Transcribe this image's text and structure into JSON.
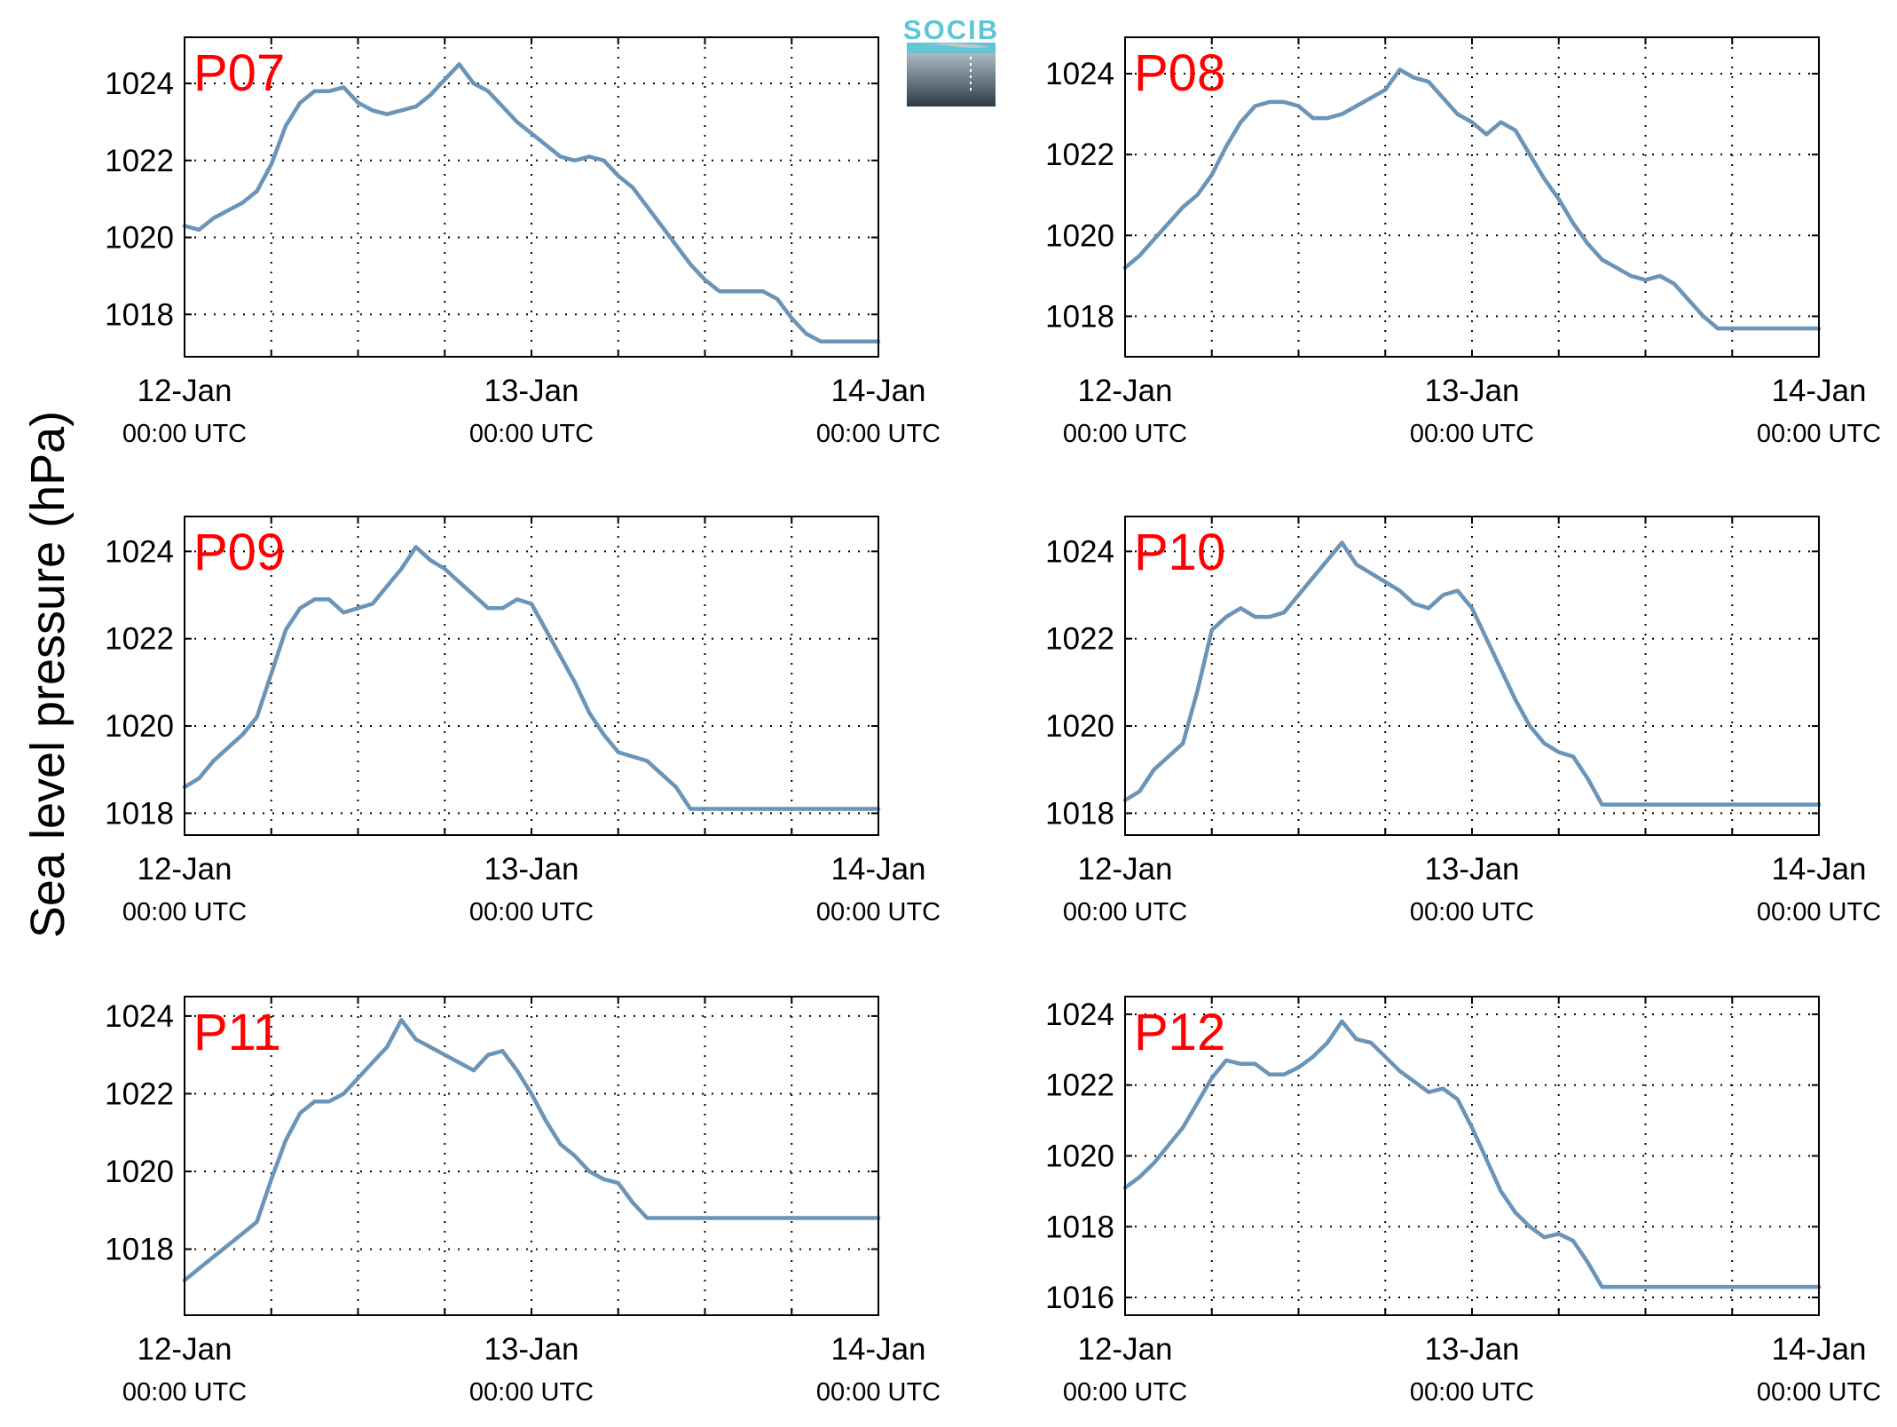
{
  "colors": {
    "line": "#6a94b8",
    "label": "#ff0000",
    "logo_top": "#5ec4d6",
    "logo_dark": "#2c3a44"
  },
  "logo": {
    "text": "SOCIB"
  },
  "ylabel": "Sea level pressure (hPa)",
  "chart_data": [
    {
      "type": "line",
      "label": "P07",
      "ylim": [
        1016.9,
        1025.2
      ],
      "yticks": [
        1018,
        1020,
        1022,
        1024
      ],
      "x_ticks": [
        "12-Jan",
        "13-Jan",
        "14-Jan"
      ],
      "x_tick_sub": "00:00 UTC",
      "xlim_hours": [
        0,
        48
      ],
      "grid": true,
      "x": [
        0,
        1,
        2,
        3,
        4,
        5,
        6,
        7,
        8,
        9,
        10,
        11,
        12,
        13,
        14,
        15,
        16,
        17,
        18,
        19,
        20,
        21,
        22,
        23,
        24,
        25,
        26,
        27,
        28,
        29,
        30,
        31,
        32,
        33,
        34,
        35,
        36,
        37,
        38,
        39,
        40,
        41,
        42,
        43,
        44,
        45,
        46,
        47,
        48
      ],
      "y": [
        1020.3,
        1020.2,
        1020.5,
        1020.7,
        1020.9,
        1021.2,
        1021.9,
        1022.9,
        1023.5,
        1023.8,
        1023.8,
        1023.9,
        1023.5,
        1023.3,
        1023.2,
        1023.3,
        1023.4,
        1023.7,
        1024.1,
        1024.5,
        1024.0,
        1023.8,
        1023.4,
        1023.0,
        1022.7,
        1022.4,
        1022.1,
        1022.0,
        1022.1,
        1022.0,
        1021.6,
        1021.3,
        1020.8,
        1020.3,
        1019.8,
        1019.3,
        1018.9,
        1018.6,
        1018.6,
        1018.6,
        1018.6,
        1018.4,
        1017.9,
        1017.5,
        1017.3,
        1017.3,
        1017.3,
        1017.3,
        1017.3
      ]
    },
    {
      "type": "line",
      "label": "P08",
      "ylim": [
        1017.0,
        1024.9
      ],
      "yticks": [
        1018,
        1020,
        1022,
        1024
      ],
      "x_ticks": [
        "12-Jan",
        "13-Jan",
        "14-Jan"
      ],
      "x_tick_sub": "00:00 UTC",
      "xlim_hours": [
        0,
        48
      ],
      "grid": true,
      "x": [
        0,
        1,
        2,
        3,
        4,
        5,
        6,
        7,
        8,
        9,
        10,
        11,
        12,
        13,
        14,
        15,
        16,
        17,
        18,
        19,
        20,
        21,
        22,
        23,
        24,
        25,
        26,
        27,
        28,
        29,
        30,
        31,
        32,
        33,
        34,
        35,
        36,
        37,
        38,
        39,
        40,
        41,
        42,
        43,
        44,
        45,
        46,
        47,
        48
      ],
      "y": [
        1019.2,
        1019.5,
        1019.9,
        1020.3,
        1020.7,
        1021.0,
        1021.5,
        1022.2,
        1022.8,
        1023.2,
        1023.3,
        1023.3,
        1023.2,
        1022.9,
        1022.9,
        1023.0,
        1023.2,
        1023.4,
        1023.6,
        1024.1,
        1023.9,
        1023.8,
        1023.4,
        1023.0,
        1022.8,
        1022.5,
        1022.8,
        1022.6,
        1022.0,
        1021.4,
        1020.9,
        1020.3,
        1019.8,
        1019.4,
        1019.2,
        1019.0,
        1018.9,
        1019.0,
        1018.8,
        1018.4,
        1018.0,
        1017.7,
        1017.7,
        1017.7,
        1017.7,
        1017.7,
        1017.7,
        1017.7,
        1017.7
      ]
    },
    {
      "type": "line",
      "label": "P09",
      "ylim": [
        1017.5,
        1024.8
      ],
      "yticks": [
        1018,
        1020,
        1022,
        1024
      ],
      "x_ticks": [
        "12-Jan",
        "13-Jan",
        "14-Jan"
      ],
      "x_tick_sub": "00:00 UTC",
      "xlim_hours": [
        0,
        48
      ],
      "grid": true,
      "x": [
        0,
        1,
        2,
        3,
        4,
        5,
        6,
        7,
        8,
        9,
        10,
        11,
        12,
        13,
        14,
        15,
        16,
        17,
        18,
        19,
        20,
        21,
        22,
        23,
        24,
        25,
        26,
        27,
        28,
        29,
        30,
        31,
        32,
        33,
        34,
        35,
        36,
        37,
        38,
        39,
        40,
        41,
        42,
        43,
        44,
        45,
        46,
        47,
        48
      ],
      "y": [
        1018.6,
        1018.8,
        1019.2,
        1019.5,
        1019.8,
        1020.2,
        1021.2,
        1022.2,
        1022.7,
        1022.9,
        1022.9,
        1022.6,
        1022.7,
        1022.8,
        1023.2,
        1023.6,
        1024.1,
        1023.8,
        1023.6,
        1023.3,
        1023.0,
        1022.7,
        1022.7,
        1022.9,
        1022.8,
        1022.2,
        1021.6,
        1021.0,
        1020.3,
        1019.8,
        1019.4,
        1019.3,
        1019.2,
        1018.9,
        1018.6,
        1018.1,
        1018.1,
        1018.1,
        1018.1,
        1018.1,
        1018.1,
        1018.1,
        1018.1,
        1018.1,
        1018.1,
        1018.1,
        1018.1,
        1018.1,
        1018.1
      ]
    },
    {
      "type": "line",
      "label": "P10",
      "ylim": [
        1017.5,
        1024.8
      ],
      "yticks": [
        1018,
        1020,
        1022,
        1024
      ],
      "x_ticks": [
        "12-Jan",
        "13-Jan",
        "14-Jan"
      ],
      "x_tick_sub": "00:00 UTC",
      "xlim_hours": [
        0,
        48
      ],
      "grid": true,
      "x": [
        0,
        1,
        2,
        3,
        4,
        5,
        6,
        7,
        8,
        9,
        10,
        11,
        12,
        13,
        14,
        15,
        16,
        17,
        18,
        19,
        20,
        21,
        22,
        23,
        24,
        25,
        26,
        27,
        28,
        29,
        30,
        31,
        32,
        33,
        34,
        35,
        36,
        37,
        38,
        39,
        40,
        41,
        42,
        43,
        44,
        45,
        46,
        47,
        48
      ],
      "y": [
        1018.3,
        1018.5,
        1019.0,
        1019.3,
        1019.6,
        1020.8,
        1022.2,
        1022.5,
        1022.7,
        1022.5,
        1022.5,
        1022.6,
        1023.0,
        1023.4,
        1023.8,
        1024.2,
        1023.7,
        1023.5,
        1023.3,
        1023.1,
        1022.8,
        1022.7,
        1023.0,
        1023.1,
        1022.7,
        1022.0,
        1021.3,
        1020.6,
        1020.0,
        1019.6,
        1019.4,
        1019.3,
        1018.8,
        1018.2,
        1018.2,
        1018.2,
        1018.2,
        1018.2,
        1018.2,
        1018.2,
        1018.2,
        1018.2,
        1018.2,
        1018.2,
        1018.2,
        1018.2,
        1018.2,
        1018.2,
        1018.2
      ]
    },
    {
      "type": "line",
      "label": "P11",
      "ylim": [
        1016.3,
        1024.5
      ],
      "yticks": [
        1018,
        1020,
        1022,
        1024
      ],
      "x_ticks": [
        "12-Jan",
        "13-Jan",
        "14-Jan"
      ],
      "x_tick_sub": "00:00 UTC",
      "xlim_hours": [
        0,
        48
      ],
      "grid": true,
      "x": [
        0,
        1,
        2,
        3,
        4,
        5,
        6,
        7,
        8,
        9,
        10,
        11,
        12,
        13,
        14,
        15,
        16,
        17,
        18,
        19,
        20,
        21,
        22,
        23,
        24,
        25,
        26,
        27,
        28,
        29,
        30,
        31,
        32,
        33,
        34,
        35,
        36,
        37,
        38,
        39,
        40,
        41,
        42,
        43,
        44,
        45,
        46,
        47,
        48
      ],
      "y": [
        1017.2,
        1017.5,
        1017.8,
        1018.1,
        1018.4,
        1018.7,
        1019.8,
        1020.8,
        1021.5,
        1021.8,
        1021.8,
        1022.0,
        1022.4,
        1022.8,
        1023.2,
        1023.9,
        1023.4,
        1023.2,
        1023.0,
        1022.8,
        1022.6,
        1023.0,
        1023.1,
        1022.6,
        1022.0,
        1021.3,
        1020.7,
        1020.4,
        1020.0,
        1019.8,
        1019.7,
        1019.2,
        1018.8,
        1018.8,
        1018.8,
        1018.8,
        1018.8,
        1018.8,
        1018.8,
        1018.8,
        1018.8,
        1018.8,
        1018.8,
        1018.8,
        1018.8,
        1018.8,
        1018.8,
        1018.8,
        1018.8
      ]
    },
    {
      "type": "line",
      "label": "P12",
      "ylim": [
        1015.5,
        1024.5
      ],
      "yticks": [
        1016,
        1018,
        1020,
        1022,
        1024
      ],
      "x_ticks": [
        "12-Jan",
        "13-Jan",
        "14-Jan"
      ],
      "x_tick_sub": "00:00 UTC",
      "xlim_hours": [
        0,
        48
      ],
      "grid": true,
      "x": [
        0,
        1,
        2,
        3,
        4,
        5,
        6,
        7,
        8,
        9,
        10,
        11,
        12,
        13,
        14,
        15,
        16,
        17,
        18,
        19,
        20,
        21,
        22,
        23,
        24,
        25,
        26,
        27,
        28,
        29,
        30,
        31,
        32,
        33,
        34,
        35,
        36,
        37,
        38,
        39,
        40,
        41,
        42,
        43,
        44,
        45,
        46,
        47,
        48
      ],
      "y": [
        1019.1,
        1019.4,
        1019.8,
        1020.3,
        1020.8,
        1021.5,
        1022.2,
        1022.7,
        1022.6,
        1022.6,
        1022.3,
        1022.3,
        1022.5,
        1022.8,
        1023.2,
        1023.8,
        1023.3,
        1023.2,
        1022.8,
        1022.4,
        1022.1,
        1021.8,
        1021.9,
        1021.6,
        1020.8,
        1019.9,
        1019.0,
        1018.4,
        1018.0,
        1017.7,
        1017.8,
        1017.6,
        1017.0,
        1016.3,
        1016.3,
        1016.3,
        1016.3,
        1016.3,
        1016.3,
        1016.3,
        1016.3,
        1016.3,
        1016.3,
        1016.3,
        1016.3,
        1016.3,
        1016.3,
        1016.3,
        1016.3
      ]
    }
  ]
}
